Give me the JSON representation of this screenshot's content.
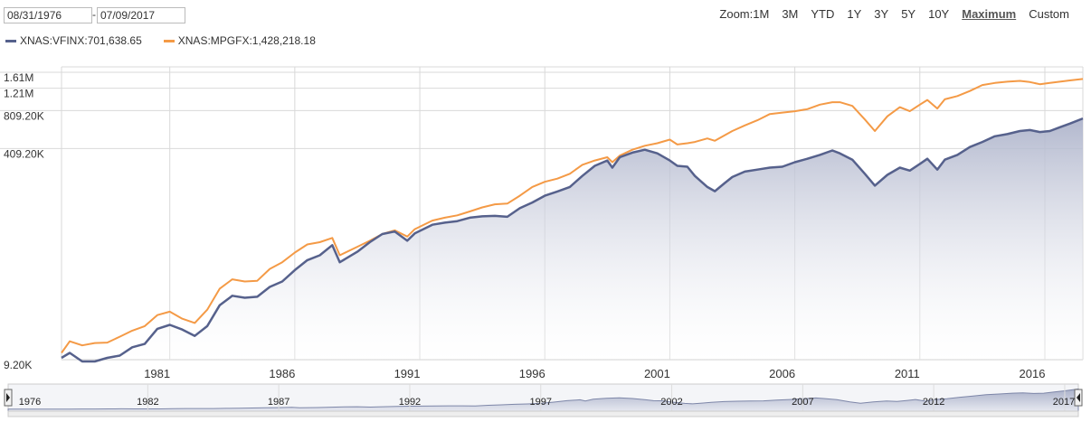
{
  "range": {
    "from": "08/31/1976",
    "separator": "-",
    "to": "07/09/2017"
  },
  "zoom": {
    "label": "Zoom:",
    "options": [
      "1M",
      "3M",
      "YTD",
      "1Y",
      "3Y",
      "5Y",
      "10Y",
      "Maximum",
      "Custom"
    ],
    "active": "Maximum"
  },
  "colors": {
    "vfinx": "#56618c",
    "mpgfx": "#f49a46",
    "grid": "#d9d9d9",
    "area_top": "#aeb4cb"
  },
  "chart_data": {
    "type": "line",
    "yscale": "log",
    "y_tick_labels": [
      "1.61M",
      "1.21M",
      "809.20K",
      "409.20K",
      "9.20K"
    ],
    "y_tick_values": [
      1610000,
      1210000,
      809200,
      409200,
      9200
    ],
    "x_tick_labels": [
      "1981",
      "1986",
      "1991",
      "1996",
      "2001",
      "2006",
      "2011",
      "2016"
    ],
    "navigator_labels": [
      "1976",
      "1982",
      "1987",
      "1992",
      "1997",
      "2002",
      "2007",
      "2012",
      "2017"
    ],
    "xlim": [
      1976.67,
      2017.52
    ],
    "series": [
      {
        "name": "XNAS:VFINX",
        "last_value": "701,638.65",
        "x": [
          1976.67,
          1977.0,
          1977.5,
          1978.0,
          1978.5,
          1979.0,
          1979.5,
          1980.0,
          1980.5,
          1981.0,
          1981.5,
          1982.0,
          1982.5,
          1983.0,
          1983.5,
          1984.0,
          1984.5,
          1985.0,
          1985.5,
          1986.0,
          1986.5,
          1987.0,
          1987.5,
          1987.8,
          1988.5,
          1989.0,
          1989.5,
          1990.0,
          1990.5,
          1990.8,
          1991.5,
          1992.0,
          1992.5,
          1993.0,
          1993.5,
          1994.0,
          1994.5,
          1995.0,
          1995.5,
          1996.0,
          1996.5,
          1997.0,
          1997.5,
          1998.0,
          1998.5,
          1998.7,
          1999.0,
          1999.5,
          2000.0,
          2000.5,
          2001.0,
          2001.3,
          2001.7,
          2002.0,
          2002.5,
          2002.8,
          2003.2,
          2003.5,
          2004.0,
          2004.5,
          2005.0,
          2005.5,
          2006.0,
          2006.5,
          2007.0,
          2007.5,
          2007.8,
          2008.3,
          2008.8,
          2009.2,
          2009.7,
          2010.2,
          2010.6,
          2011.0,
          2011.3,
          2011.7,
          2012.0,
          2012.5,
          2013.0,
          2013.5,
          2014.0,
          2014.5,
          2015.0,
          2015.4,
          2015.8,
          2016.2,
          2016.6,
          2017.0,
          2017.52
        ],
        "y": [
          9500,
          10400,
          8900,
          8900,
          9500,
          9900,
          11500,
          12200,
          16000,
          17200,
          15800,
          14100,
          16800,
          24500,
          29000,
          28000,
          28500,
          34000,
          37500,
          46000,
          55000,
          60000,
          72000,
          53000,
          64000,
          76000,
          88000,
          92000,
          78000,
          89000,
          104000,
          108000,
          111000,
          118000,
          121000,
          122000,
          120000,
          140000,
          155000,
          175000,
          189000,
          205000,
          250000,
          300000,
          330000,
          290000,
          350000,
          380000,
          400000,
          375000,
          330000,
          300000,
          295000,
          250000,
          205000,
          190000,
          220000,
          245000,
          270000,
          280000,
          290000,
          295000,
          320000,
          340000,
          365000,
          395000,
          375000,
          335000,
          260000,
          210000,
          255000,
          290000,
          275000,
          310000,
          340000,
          280000,
          335000,
          365000,
          420000,
          460000,
          510000,
          530000,
          560000,
          570000,
          550000,
          560000,
          600000,
          640000,
          701639
        ]
      },
      {
        "name": "XNAS:MPGFX",
        "last_value": "1,428,218.18",
        "x": [
          1976.67,
          1977.0,
          1977.5,
          1978.0,
          1978.5,
          1979.0,
          1979.5,
          1980.0,
          1980.5,
          1981.0,
          1981.5,
          1982.0,
          1982.5,
          1983.0,
          1983.5,
          1984.0,
          1984.5,
          1985.0,
          1985.5,
          1986.0,
          1986.5,
          1987.0,
          1987.5,
          1987.8,
          1988.5,
          1989.0,
          1989.5,
          1990.0,
          1990.5,
          1990.8,
          1991.5,
          1992.0,
          1992.5,
          1993.0,
          1993.5,
          1994.0,
          1994.5,
          1995.0,
          1995.5,
          1996.0,
          1996.5,
          1997.0,
          1997.5,
          1998.0,
          1998.5,
          1998.7,
          1999.0,
          1999.5,
          2000.0,
          2000.5,
          2001.0,
          2001.3,
          2001.7,
          2002.0,
          2002.5,
          2002.8,
          2003.2,
          2003.5,
          2004.0,
          2004.5,
          2005.0,
          2005.5,
          2006.0,
          2006.5,
          2007.0,
          2007.5,
          2007.8,
          2008.3,
          2008.8,
          2009.2,
          2009.7,
          2010.2,
          2010.6,
          2011.0,
          2011.3,
          2011.7,
          2012.0,
          2012.5,
          2013.0,
          2013.5,
          2014.0,
          2014.5,
          2015.0,
          2015.4,
          2015.8,
          2016.2,
          2016.6,
          2017.0,
          2017.52
        ],
        "y": [
          10400,
          12800,
          11900,
          12400,
          12500,
          13900,
          15500,
          16800,
          20500,
          21800,
          19200,
          17800,
          22600,
          33000,
          39000,
          37500,
          38000,
          47000,
          53000,
          63000,
          73000,
          76000,
          82000,
          60000,
          70000,
          78000,
          88000,
          94000,
          84000,
          96000,
          112000,
          118000,
          123000,
          132000,
          142000,
          150000,
          152000,
          175000,
          205000,
          225000,
          238000,
          260000,
          305000,
          330000,
          350000,
          320000,
          360000,
          400000,
          430000,
          450000,
          480000,
          440000,
          450000,
          460000,
          490000,
          470000,
          520000,
          560000,
          620000,
          680000,
          760000,
          780000,
          800000,
          830000,
          900000,
          940000,
          940000,
          880000,
          690000,
          560000,
          730000,
          860000,
          800000,
          900000,
          980000,
          840000,
          990000,
          1050000,
          1150000,
          1280000,
          1330000,
          1360000,
          1380000,
          1350000,
          1300000,
          1330000,
          1360000,
          1390000,
          1428218
        ]
      }
    ]
  }
}
